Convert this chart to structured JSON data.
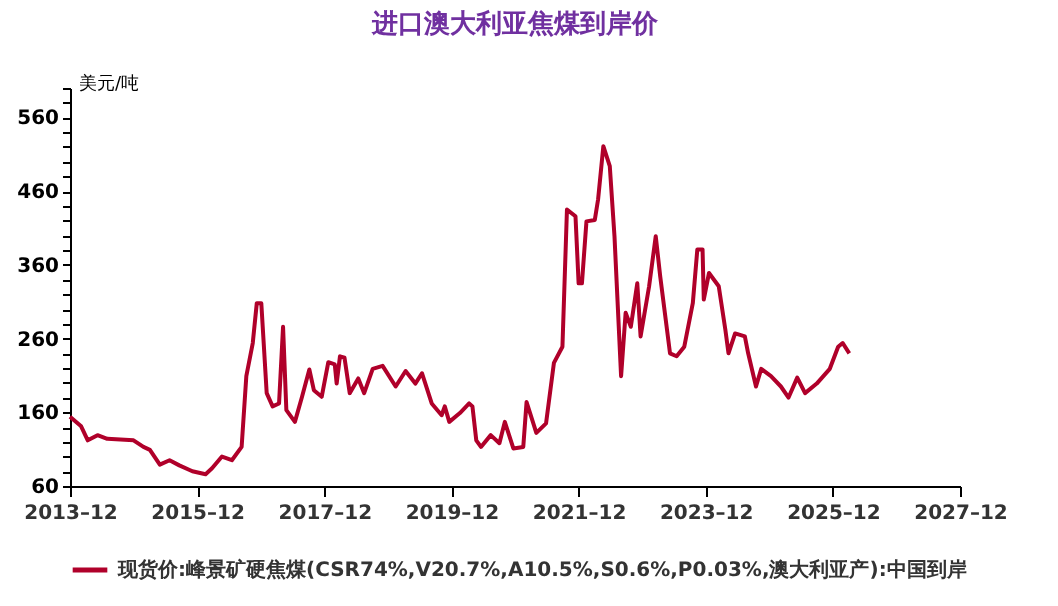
{
  "chart_data": {
    "type": "line",
    "title": "进口澳大利亚焦煤到岸价",
    "ylabel": "美元/吨",
    "x": [
      "2013-12-01",
      "2014-02-03",
      "2014-03-13",
      "2014-05-08",
      "2014-07-03",
      "2014-12-01",
      "2015-01-27",
      "2015-03-05",
      "2015-05-01",
      "2015-06-26",
      "2015-08-21",
      "2015-11-04",
      "2016-01-19",
      "2016-02-25",
      "2016-04-22",
      "2016-06-18",
      "2016-08-13",
      "2016-09-09",
      "2016-10-16",
      "2016-11-08",
      "2016-12-04",
      "2017-01-04",
      "2017-02-07",
      "2017-03-16",
      "2017-04-08",
      "2017-04-27",
      "2017-06-15",
      "2017-07-26",
      "2017-09-06",
      "2017-10-02",
      "2017-11-16",
      "2017-12-24",
      "2018-01-30",
      "2018-02-10",
      "2018-03-01",
      "2018-03-27",
      "2018-04-26",
      "2018-06-14",
      "2018-07-18",
      "2018-09-05",
      "2018-11-01",
      "2019-01-15",
      "2019-03-13",
      "2019-05-08",
      "2019-06-15",
      "2019-08-10",
      "2019-10-06",
      "2019-10-24",
      "2019-11-19",
      "2020-01-19",
      "2020-03-12",
      "2020-03-31",
      "2020-04-22",
      "2020-05-19",
      "2020-07-14",
      "2020-09-02",
      "2020-10-03",
      "2020-11-21",
      "2021-01-17",
      "2021-02-05",
      "2021-04-02",
      "2021-05-28",
      "2021-07-12",
      "2021-08-30",
      "2021-09-25",
      "2021-11-13",
      "2021-12-01",
      "2021-12-20",
      "2022-01-15",
      "2022-03-04",
      "2022-03-23",
      "2022-04-22",
      "2022-05-29",
      "2022-06-25",
      "2022-08-02",
      "2022-08-28",
      "2022-09-27",
      "2022-11-03",
      "2022-11-22",
      "2023-01-10",
      "2023-02-17",
      "2023-03-15",
      "2023-05-10",
      "2023-06-17",
      "2023-07-31",
      "2023-09-18",
      "2023-10-14",
      "2023-11-13",
      "2023-11-20",
      "2023-12-20",
      "2024-02-14",
      "2024-03-23",
      "2024-04-10",
      "2024-05-18",
      "2024-07-13",
      "2024-08-01",
      "2024-09-15",
      "2024-10-15",
      "2024-12-10",
      "2025-02-05",
      "2025-03-21",
      "2025-05-10",
      "2025-06-24",
      "2025-08-30",
      "2025-11-13",
      "2025-12-31",
      "2026-01-26",
      "2026-03-05"
    ],
    "series": [
      {
        "name": "现货价:峰景矿硬焦煤(CSR74%,V20.7%,A10.5%,S0.6%,P0.03%,澳大利亚产):中国到岸",
        "color": "#b0002a",
        "values": [
          154,
          141,
          122,
          129,
          124,
          122,
          113,
          109,
          89,
          95,
          88,
          80,
          76,
          84,
          100,
          95,
          113,
          209,
          254,
          308,
          308,
          186,
          168,
          172,
          276,
          163,
          147,
          181,
          218,
          190,
          181,
          228,
          225,
          199,
          236,
          234,
          186,
          206,
          186,
          219,
          223,
          195,
          216,
          199,
          213,
          172,
          156,
          168,
          147,
          159,
          172,
          168,
          122,
          113,
          129,
          118,
          147,
          111,
          113,
          174,
          132,
          145,
          227,
          249,
          435,
          426,
          335,
          335,
          419,
          421,
          449,
          521,
          494,
          399,
          209,
          295,
          276,
          335,
          263,
          331,
          399,
          344,
          240,
          236,
          249,
          308,
          381,
          381,
          313,
          349,
          331,
          272,
          240,
          267,
          263,
          240,
          195,
          219,
          209,
          195,
          180,
          207,
          186,
          199,
          219,
          249,
          254,
          240
        ]
      }
    ],
    "xlim": [
      "2013-12",
      "2027-12"
    ],
    "xticks": [
      {
        "value": "2013-12",
        "label": "2013–12"
      },
      {
        "value": "2015-12",
        "label": "2015–12"
      },
      {
        "value": "2017-12",
        "label": "2017–12"
      },
      {
        "value": "2019-12",
        "label": "2019–12"
      },
      {
        "value": "2021-12",
        "label": "2021–12"
      },
      {
        "value": "2023-12",
        "label": "2023–12"
      },
      {
        "value": "2025-12",
        "label": "2025–12"
      },
      {
        "value": "2027-12",
        "label": "2027–12"
      }
    ],
    "ylim": [
      60,
      600
    ],
    "yticks": [
      60,
      {
        "value": 80,
        "label": null
      },
      {
        "value": 100,
        "label": null
      },
      {
        "value": 120,
        "label": null
      },
      {
        "value": 140,
        "label": null
      },
      160,
      {
        "value": 180,
        "label": null
      },
      {
        "value": 200,
        "label": null
      },
      {
        "value": 220,
        "label": null
      },
      {
        "value": 240,
        "label": null
      },
      260,
      {
        "value": 280,
        "label": null
      },
      {
        "value": 300,
        "label": null
      },
      {
        "value": 320,
        "label": null
      },
      {
        "value": 340,
        "label": null
      },
      360,
      {
        "value": 380,
        "label": null
      },
      {
        "value": 400,
        "label": null
      },
      {
        "value": 420,
        "label": null
      },
      {
        "value": 440,
        "label": null
      },
      460,
      {
        "value": 480,
        "label": null
      },
      {
        "value": 500,
        "label": null
      },
      {
        "value": 520,
        "label": null
      },
      {
        "value": 540,
        "label": null
      },
      560,
      {
        "value": 580,
        "label": null
      },
      {
        "value": 600,
        "label": null
      }
    ],
    "grid": false,
    "legend": "bottom",
    "marker": "none",
    "line_style": "solid"
  }
}
